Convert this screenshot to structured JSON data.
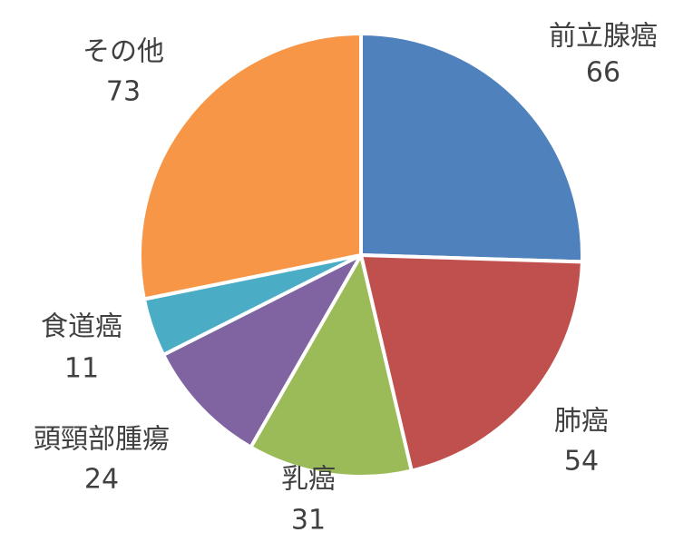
{
  "chart_data": {
    "type": "pie",
    "title": "",
    "categories": [
      "前立腺癌",
      "肺癌",
      "乳癌",
      "頭頸部腫瘍",
      "食道癌",
      "その他"
    ],
    "values": [
      66,
      54,
      31,
      24,
      11,
      73
    ],
    "colors": [
      "#4F81BD",
      "#C0504D",
      "#9BBB59",
      "#8064A2",
      "#4BACC6",
      "#F79646"
    ],
    "start_angle": "12 o'clock",
    "direction": "clockwise",
    "data_labels": "category and value, outside slices",
    "legend": "none"
  }
}
